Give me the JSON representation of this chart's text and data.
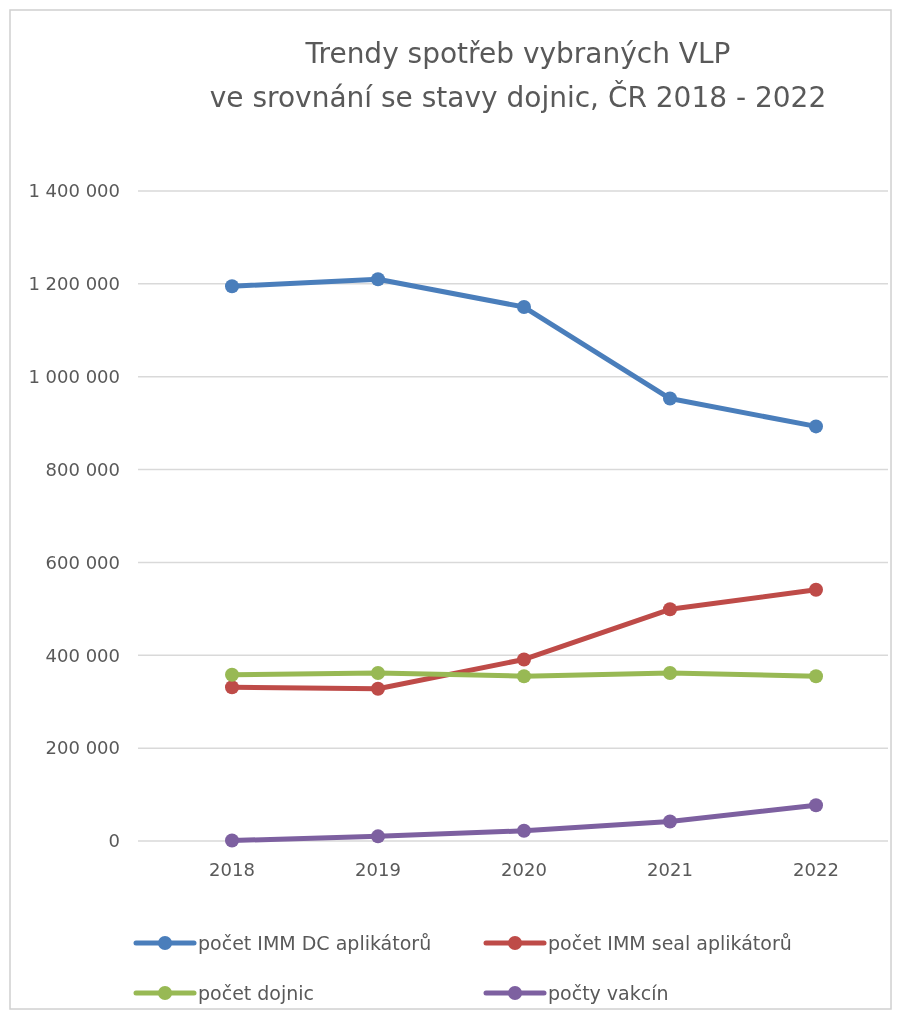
{
  "chart_data": {
    "type": "line",
    "title": "Trendy spotřeb vybraných VLP\nve srovnání se stavy dojnic, ČR 2018 - 2022",
    "categories": [
      "2018",
      "2019",
      "2020",
      "2021",
      "2022"
    ],
    "series": [
      {
        "name": "počet IMM DC aplikátorů",
        "color": "#4a7ebb",
        "values": [
          1195000,
          1210000,
          1150000,
          953000,
          893000
        ]
      },
      {
        "name": "počet IMM seal aplikátorů",
        "color": "#be4b48",
        "values": [
          331000,
          328000,
          391000,
          499000,
          541000
        ]
      },
      {
        "name": "počet dojnic",
        "color": "#98b954",
        "values": [
          358000,
          362000,
          355000,
          362000,
          355000
        ]
      },
      {
        "name": "počty vakcín",
        "color": "#7d60a0",
        "values": [
          1000,
          10000,
          22000,
          42000,
          77000
        ]
      }
    ],
    "ylim": [
      0,
      1400000
    ],
    "yticks": [
      0,
      {
        "value": 200000,
        "label": "200 000"
      },
      {
        "value": 400000,
        "label": "400 000"
      },
      {
        "value": 600000,
        "label": "600 000"
      },
      {
        "value": 800000,
        "label": "800 000"
      },
      {
        "value": 1000000,
        "label": "1 000 000"
      },
      {
        "value": 1200000,
        "label": "1 200 000"
      },
      {
        "value": 1400000,
        "label": "1 400 000"
      }
    ],
    "grid": "y",
    "legend": "bottom",
    "marker": "circle",
    "line_style": "solid"
  }
}
